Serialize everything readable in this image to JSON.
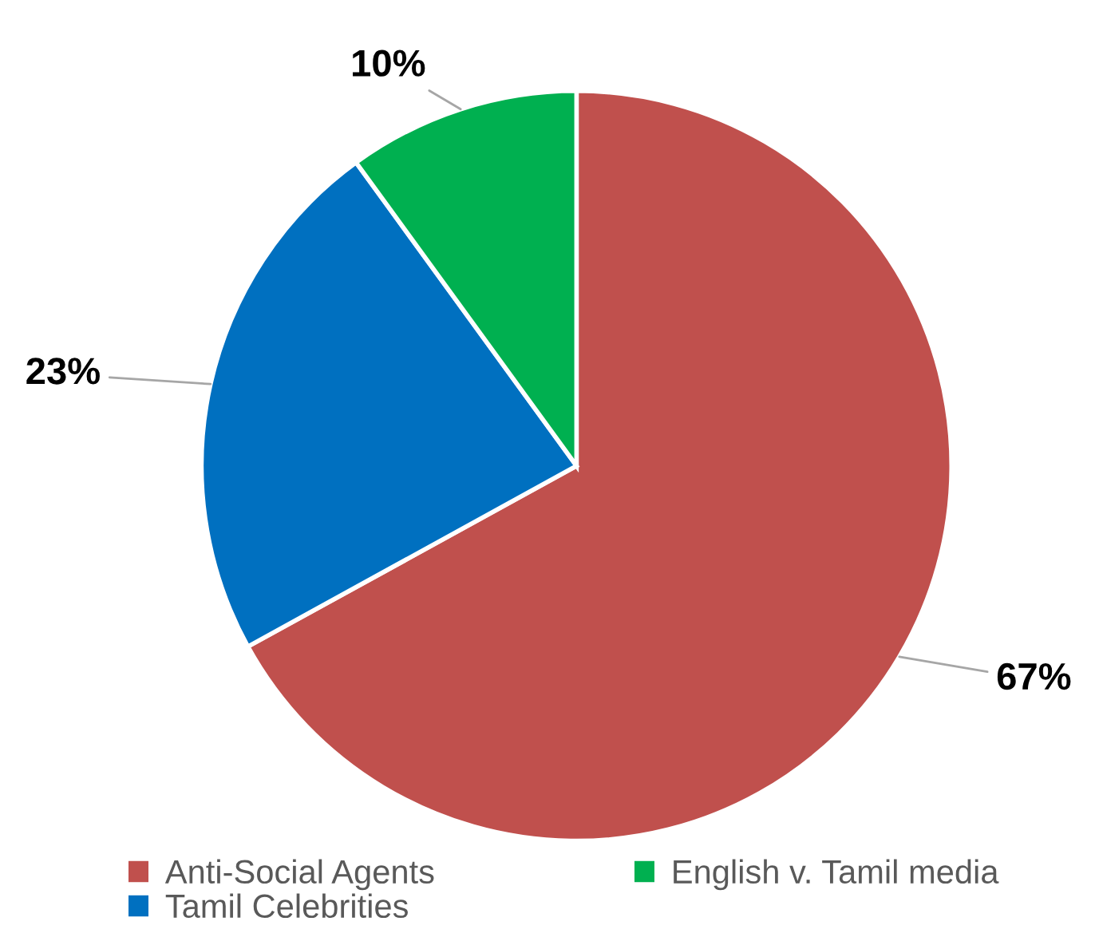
{
  "chart_data": {
    "type": "pie",
    "categories": [
      "Anti-Social Agents",
      "Tamil Celebrities",
      "English v. Tamil media"
    ],
    "values": [
      67,
      23,
      10
    ],
    "colors": [
      "#c0504d",
      "#0070c0",
      "#00b050"
    ],
    "value_labels": [
      "67%",
      "23%",
      "10%"
    ],
    "legend": "bottom"
  }
}
